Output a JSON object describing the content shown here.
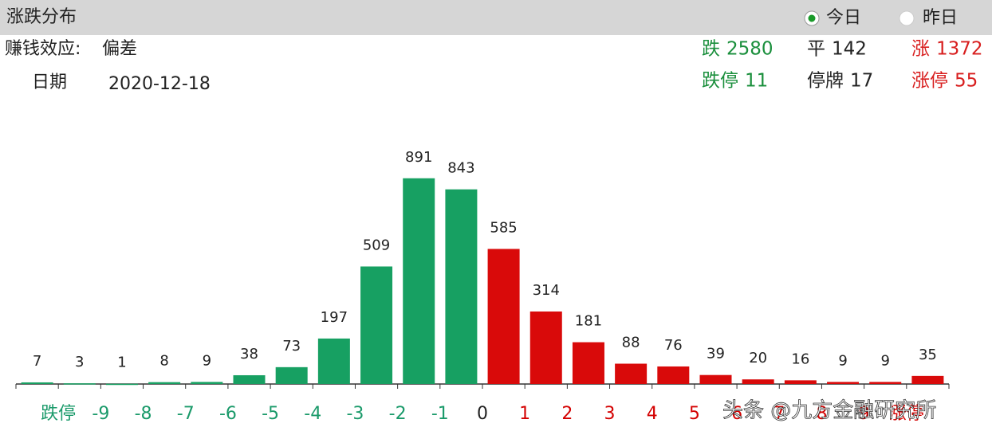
{
  "header": {
    "title": "涨跌分布",
    "options": [
      "今日",
      "昨日"
    ],
    "selected": 0,
    "effect_label": "赚钱效应:",
    "effect_value": "偏差",
    "date_label": "日期",
    "date": "2020-12-18",
    "stats": [
      {
        "label": "跌",
        "value": 2580,
        "color": "#1a8f3c"
      },
      {
        "label": "平",
        "value": 142,
        "color": "#222222"
      },
      {
        "label": "涨",
        "value": 1372,
        "color": "#d81e1e"
      },
      {
        "label": "跌停",
        "value": 11,
        "color": "#1a8f3c"
      },
      {
        "label": "停牌",
        "value": 17,
        "color": "#222222"
      },
      {
        "label": "涨停",
        "value": 55,
        "color": "#d81e1e"
      }
    ]
  },
  "chart_data": {
    "type": "histogram",
    "bins": [
      null,
      "跌停",
      -9,
      -8,
      -7,
      -6,
      -5,
      -4,
      -3,
      -2,
      -1,
      0,
      1,
      2,
      3,
      4,
      5,
      6,
      7,
      8,
      9,
      "涨停",
      null
    ],
    "tick_colors": [
      null,
      "#1a9a6a",
      "#1a9a6a",
      "#1a9a6a",
      "#1a9a6a",
      "#1a9a6a",
      "#1a9a6a",
      "#1a9a6a",
      "#1a9a6a",
      "#1a9a6a",
      "#1a9a6a",
      "#222222",
      "#d40000",
      "#d40000",
      "#d40000",
      "#d40000",
      "#d40000",
      "#d40000",
      "#d40000",
      "#d40000",
      "#d40000",
      "#d40000",
      null
    ],
    "values": [
      7,
      3,
      1,
      8,
      9,
      38,
      73,
      197,
      509,
      891,
      843,
      585,
      314,
      181,
      88,
      76,
      39,
      20,
      16,
      9,
      9,
      35
    ],
    "colors": [
      "#17a062",
      "#17a062",
      "#17a062",
      "#17a062",
      "#17a062",
      "#17a062",
      "#17a062",
      "#17a062",
      "#17a062",
      "#17a062",
      "#17a062",
      "#d90a0a",
      "#d90a0a",
      "#d90a0a",
      "#d90a0a",
      "#d90a0a",
      "#d90a0a",
      "#d90a0a",
      "#d90a0a",
      "#d90a0a",
      "#d90a0a",
      "#d90a0a"
    ],
    "ylim": [
      0,
      1180
    ]
  },
  "watermark": "头条 @九方金融研究所"
}
